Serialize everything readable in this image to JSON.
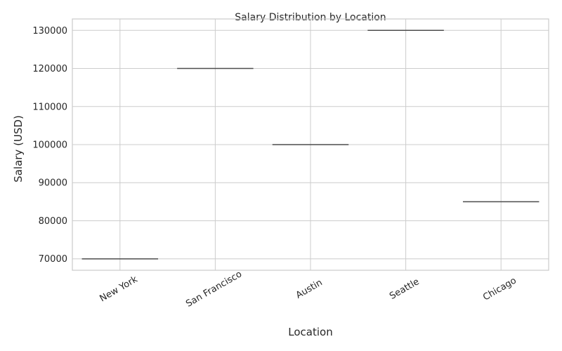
{
  "chart_data": {
    "type": "box",
    "title": "Salary Distribution by Location",
    "xlabel": "Location",
    "ylabel": "Salary (USD)",
    "categories": [
      "New York",
      "San Francisco",
      "Austin",
      "Seattle",
      "Chicago"
    ],
    "values": [
      70000,
      120000,
      100000,
      130000,
      85000
    ],
    "yticks": [
      "70000",
      "80000",
      "90000",
      "100000",
      "110000",
      "120000",
      "130000"
    ],
    "ylim": [
      67000,
      133000
    ],
    "grid": true,
    "colors": {
      "grid": "#cccccc",
      "box": "#4d4d4d",
      "text": "#262626"
    }
  }
}
